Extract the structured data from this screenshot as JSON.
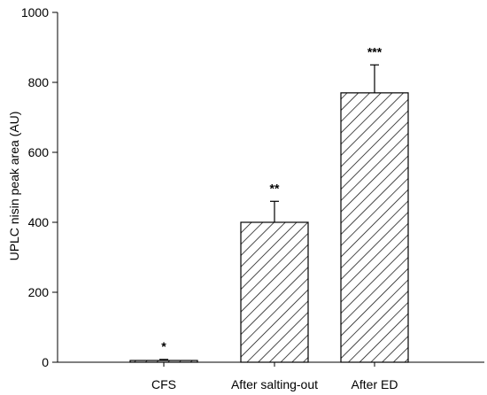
{
  "chart_data": {
    "type": "bar",
    "categories": [
      "CFS",
      "After salting-out",
      "After ED"
    ],
    "values": [
      5,
      400,
      770
    ],
    "errors": [
      3,
      60,
      80
    ],
    "significance": [
      "*",
      "**",
      "***"
    ],
    "ylabel": "UPLC nisin peak area (AU)",
    "xlabel": "",
    "ylim": [
      0,
      1000
    ],
    "yticks": [
      0,
      200,
      400,
      600,
      800,
      1000
    ],
    "bar_fill": "hatched",
    "bar_stroke": "#000000",
    "grid": false
  }
}
